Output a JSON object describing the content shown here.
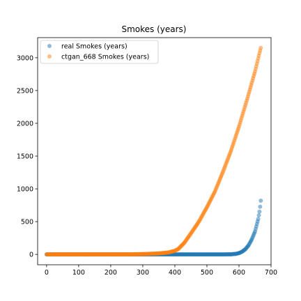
{
  "chart_data": {
    "type": "scatter",
    "title": "Smokes (years)",
    "xlabel": "",
    "ylabel": "",
    "xlim": [
      -28,
      700
    ],
    "ylim": [
      -158,
      3307
    ],
    "xticks": [
      0,
      100,
      200,
      300,
      400,
      500,
      600,
      700
    ],
    "yticks": [
      0,
      500,
      1000,
      1500,
      2000,
      2500,
      3000
    ],
    "grid": false,
    "legend": "top-left",
    "x_range": [
      0,
      668
    ],
    "series": [
      {
        "name": "real Smokes (years)",
        "color": "#1f77b4",
        "alpha": 0.5,
        "points": [
          [
            0,
            0
          ],
          [
            100,
            0
          ],
          [
            200,
            0
          ],
          [
            300,
            0
          ],
          [
            400,
            0
          ],
          [
            500,
            0
          ],
          [
            550,
            0
          ],
          [
            575,
            2
          ],
          [
            590,
            8
          ],
          [
            600,
            20
          ],
          [
            610,
            42
          ],
          [
            620,
            80
          ],
          [
            630,
            140
          ],
          [
            640,
            230
          ],
          [
            650,
            350
          ],
          [
            660,
            540
          ],
          [
            665,
            680
          ],
          [
            668,
            820
          ]
        ]
      },
      {
        "name": "ctgan_668 Smokes (years)",
        "color": "#ff7f0e",
        "alpha": 0.5,
        "points": [
          [
            0,
            0
          ],
          [
            100,
            0
          ],
          [
            200,
            0
          ],
          [
            250,
            0
          ],
          [
            300,
            5
          ],
          [
            350,
            15
          ],
          [
            380,
            30
          ],
          [
            400,
            55
          ],
          [
            410,
            80
          ],
          [
            420,
            130
          ],
          [
            430,
            180
          ],
          [
            450,
            320
          ],
          [
            475,
            500
          ],
          [
            500,
            720
          ],
          [
            525,
            960
          ],
          [
            550,
            1260
          ],
          [
            575,
            1580
          ],
          [
            600,
            1950
          ],
          [
            625,
            2360
          ],
          [
            650,
            2790
          ],
          [
            668,
            3150
          ]
        ]
      }
    ]
  }
}
